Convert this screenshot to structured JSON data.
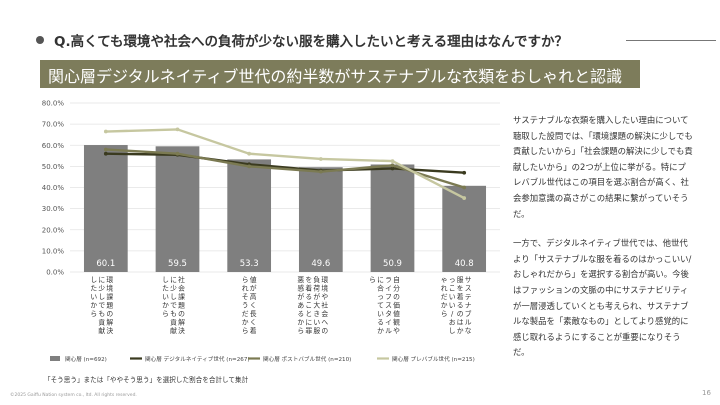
{
  "question": "Q.高くても環境や社会への負荷が少ない服を購入したいと考える理由はなんですか？",
  "banner": "関心層デジタルネイティブ世代の約半数がサステナブルな衣類をおしゃれと認識",
  "side_text": [
    "サステナブルな衣類を購入したい理由について聴取した設問では、「環境課題の解決に少しでも貢献したいから」「社会課題の解決に少しでも貢献したいから」の2つが上位に挙がる。特にプレバブル世代はこの項目を選ぶ割合が高く、社会参加意識の高さがこの結果に繋がっていそうだ。",
    "一方で、デジタルネイティブ世代では、他世代より「サステナブルな服を着るのはかっこいい/おしゃれだから」を選択する割合が高い。今後はファッションの文脈の中にサステナビリティが一層浸透していくとも考えられ、サステナブルな製品を「素敵なもの」としてより感覚的に感じ取れるようにすることが重要になりそうだ。"
  ],
  "note": "「そう思う」または「ややそう思う」を選択した割合を合計して集計",
  "copyright": "©2025 Gaiffu Nation system co., ltd. All rights reserved.",
  "page_number": "16",
  "colors": {
    "bar": "#7f7f7f",
    "digital_native": "#3a3a1f",
    "post_bubble": "#7b7a52",
    "pre_bubble": "#c6c7a0",
    "banner": "#7d7c5b"
  },
  "chart_data": {
    "type": "bar",
    "ylim": [
      0,
      80
    ],
    "yticks": [
      0,
      10,
      20,
      30,
      40,
      50,
      60,
      70,
      80
    ],
    "ytick_labels": [
      "0.0%",
      "10.0%",
      "20.0%",
      "30.0%",
      "40.0%",
      "50.0%",
      "60.0%",
      "70.0%",
      "80.0%"
    ],
    "grid": true,
    "legend_position": "bottom",
    "categories": [
      "環境課題の解決に少しでも貢献したいから",
      "社会課題の解決に少しでも貢献したいから",
      "値が高く長く着られそうだから",
      "環境や社会への負荷が大きい服を着ることに罪悪感があるから",
      "自分の価値観やライフスタイルに合っているから",
      "サステナブルな服を着るのはかっこいい/おしゃれだから"
    ],
    "series": [
      {
        "name": "関心層 (n=692)",
        "kind": "bar",
        "values": [
          60.1,
          59.5,
          53.3,
          49.6,
          50.9,
          40.8
        ],
        "labels": [
          "60.1",
          "59.5",
          "53.3",
          "49.6",
          "50.9",
          "40.8"
        ]
      },
      {
        "name": "関心層 デジタルネイティブ世代 (n=267)",
        "kind": "line",
        "values": [
          56,
          55.5,
          51,
          48,
          49,
          47
        ]
      },
      {
        "name": "関心層 ポストバブル世代 (n=210)",
        "kind": "line",
        "values": [
          58,
          56,
          50,
          47.5,
          50.5,
          40
        ]
      },
      {
        "name": "関心層 プレバブル世代 (n=215)",
        "kind": "line",
        "values": [
          66.5,
          67.5,
          56,
          53.5,
          52.5,
          35
        ]
      }
    ]
  }
}
